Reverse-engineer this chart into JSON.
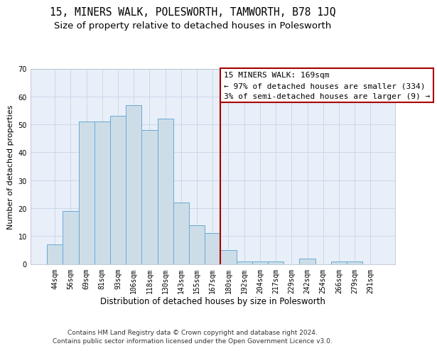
{
  "title": "15, MINERS WALK, POLESWORTH, TAMWORTH, B78 1JQ",
  "subtitle": "Size of property relative to detached houses in Polesworth",
  "xlabel": "Distribution of detached houses by size in Polesworth",
  "ylabel": "Number of detached properties",
  "categories": [
    "44sqm",
    "56sqm",
    "69sqm",
    "81sqm",
    "93sqm",
    "106sqm",
    "118sqm",
    "130sqm",
    "143sqm",
    "155sqm",
    "167sqm",
    "180sqm",
    "192sqm",
    "204sqm",
    "217sqm",
    "229sqm",
    "242sqm",
    "254sqm",
    "266sqm",
    "279sqm",
    "291sqm"
  ],
  "values": [
    7,
    19,
    51,
    51,
    53,
    57,
    48,
    52,
    22,
    14,
    11,
    5,
    1,
    1,
    1,
    0,
    2,
    0,
    1,
    1,
    0
  ],
  "bar_color": "#ccdde8",
  "bar_edge_color": "#6aaad4",
  "grid_color": "#ccd8e8",
  "background_color": "#e8eff8",
  "annotation_text": "15 MINERS WALK: 169sqm\n← 97% of detached houses are smaller (334)\n3% of semi-detached houses are larger (9) →",
  "annotation_box_color": "#ffffff",
  "annotation_box_edge_color": "#aa0000",
  "vline_color": "#aa0000",
  "ylim": [
    0,
    70
  ],
  "yticks": [
    0,
    10,
    20,
    30,
    40,
    50,
    60,
    70
  ],
  "footer_text": "Contains HM Land Registry data © Crown copyright and database right 2024.\nContains public sector information licensed under the Open Government Licence v3.0.",
  "title_fontsize": 10.5,
  "subtitle_fontsize": 9.5,
  "xlabel_fontsize": 8.5,
  "ylabel_fontsize": 8,
  "tick_fontsize": 7,
  "annotation_fontsize": 8,
  "footer_fontsize": 6.5
}
